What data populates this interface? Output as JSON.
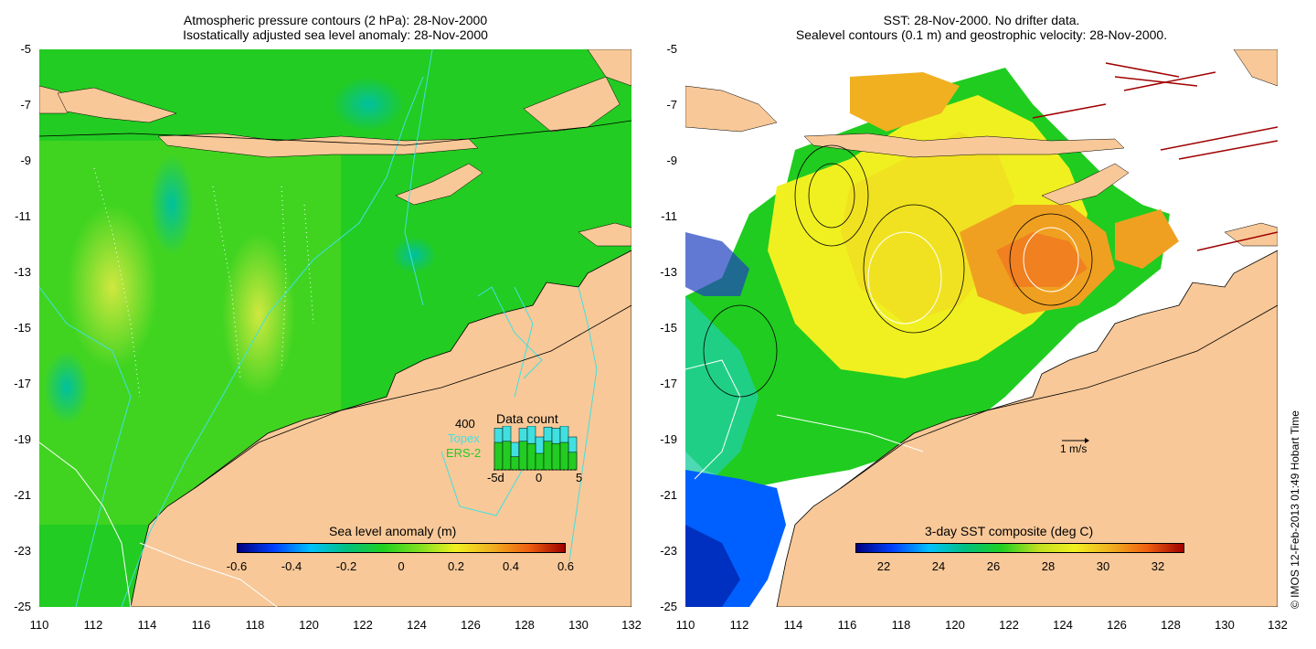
{
  "left_panel": {
    "title_line1": "Atmospheric pressure contours (2 hPa): 28-Nov-2000",
    "title_line2": "Isostatically adjusted sea level anomaly: 28-Nov-2000",
    "colorbar_label": "Sea level anomaly (m)",
    "colorbar_ticks": [
      "-0.6",
      "-0.4",
      "-0.2",
      "0",
      "0.2",
      "0.4",
      "0.6"
    ],
    "colorbar_stops": [
      "#00007f",
      "#0040ff",
      "#00c0ff",
      "#00c080",
      "#20d020",
      "#80e020",
      "#f0f020",
      "#f0b020",
      "#f06010",
      "#a00000"
    ],
    "data_count": {
      "title": "Data count",
      "max_label": "400",
      "series1": "Topex",
      "series2": "ERS-2",
      "x_ticks": [
        "-5d",
        "0",
        "5"
      ],
      "topex_values": [
        380,
        400,
        250,
        380,
        400,
        300,
        390,
        380,
        400,
        300
      ],
      "ers2_values": [
        250,
        260,
        120,
        260,
        240,
        150,
        260,
        240,
        250,
        160
      ]
    }
  },
  "right_panel": {
    "title_line1": "SST: 28-Nov-2000. No drifter data.",
    "title_line2": "Sealevel contours (0.1 m) and geostrophic velocity: 28-Nov-2000.",
    "colorbar_label": "3-day SST composite (deg C)",
    "colorbar_ticks": [
      "22",
      "24",
      "26",
      "28",
      "30",
      "32"
    ],
    "colorbar_stops": [
      "#00007f",
      "#0040ff",
      "#00c0ff",
      "#00c080",
      "#20d020",
      "#c0e020",
      "#f0f020",
      "#f0b020",
      "#f06010",
      "#a00000"
    ],
    "scale_label": "1 m/s"
  },
  "axes": {
    "y_ticks": [
      "-5",
      "-7",
      "-9",
      "-11",
      "-13",
      "-15",
      "-17",
      "-19",
      "-21",
      "-23",
      "-25"
    ],
    "x_ticks": [
      "110",
      "112",
      "114",
      "116",
      "118",
      "120",
      "122",
      "124",
      "126",
      "128",
      "130",
      "132"
    ]
  },
  "credit": "© IMOS 12-Feb-2013 01:49 Hobart Time",
  "colors": {
    "land": "#f8c898",
    "sea_green": "#22cc22",
    "sea_light": "#66dd22",
    "contour_cyan": "#40e0e0",
    "warm_orange": "#f0a020",
    "sst_yellow": "#f0f020"
  }
}
